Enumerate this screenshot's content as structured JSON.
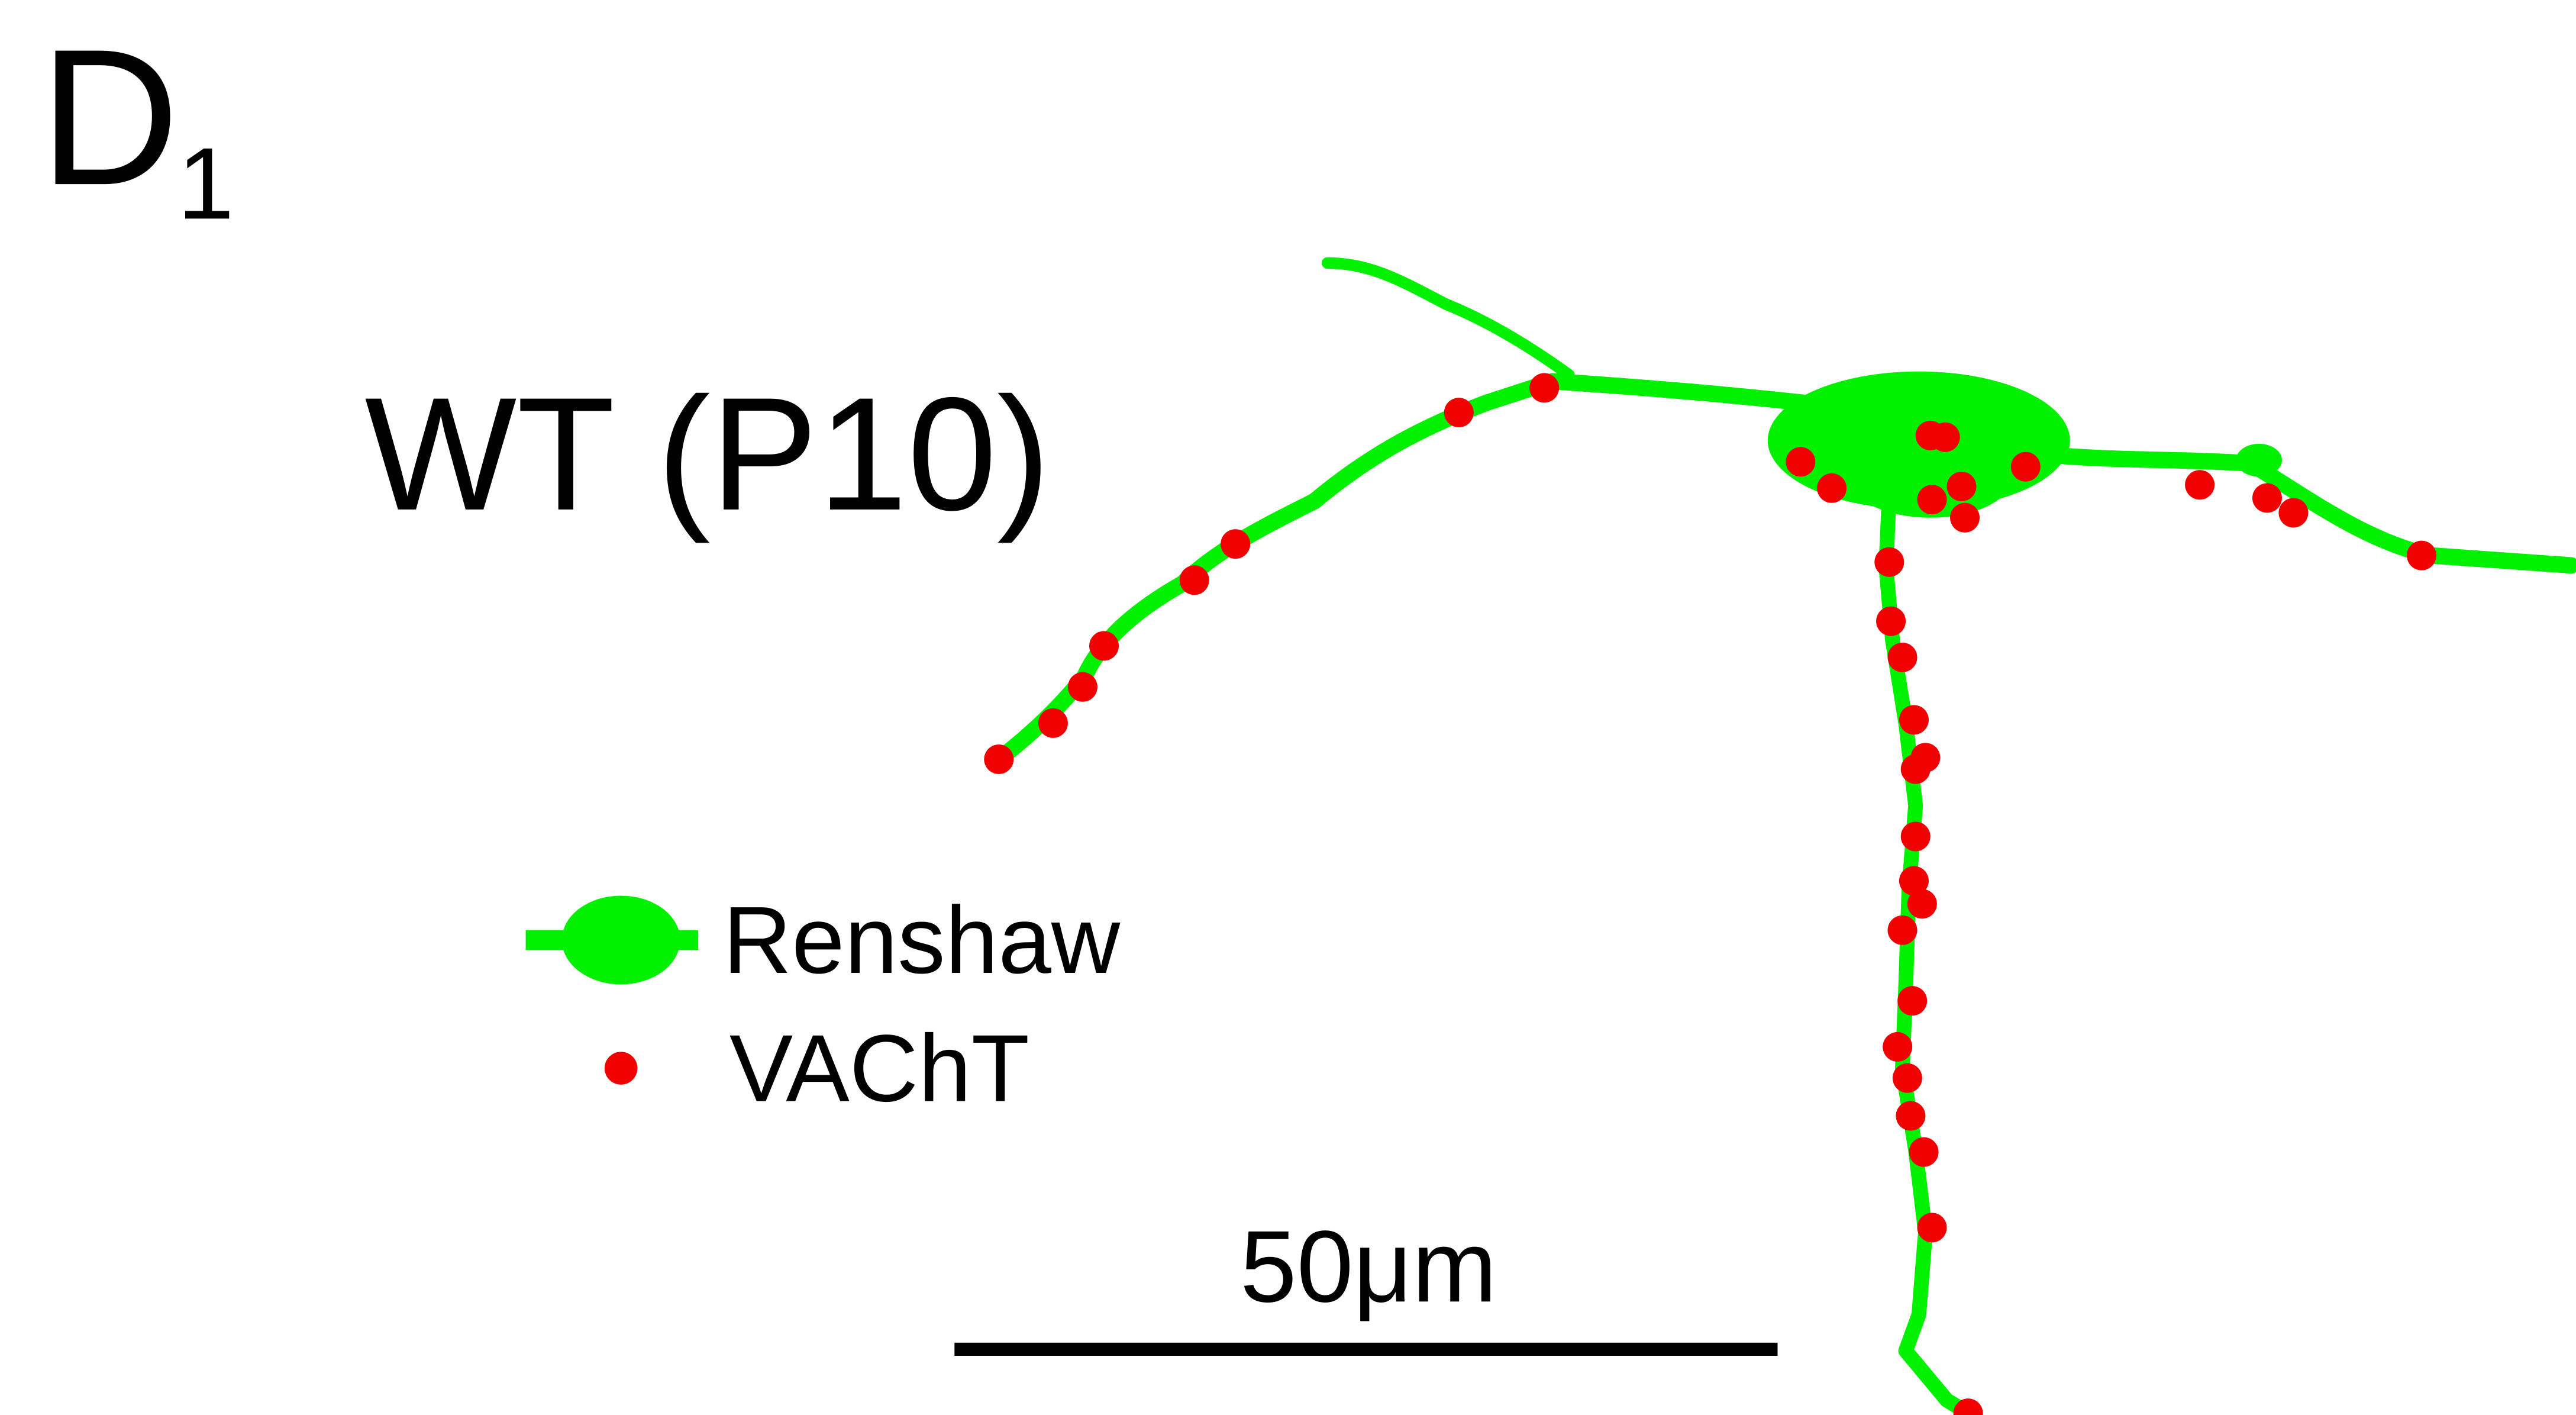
{
  "panel": {
    "letter": "D",
    "subscript": "1"
  },
  "title": "WT (P10)",
  "legend": {
    "items": [
      {
        "label": "Renshaw"
      },
      {
        "label": "VAChT"
      }
    ]
  },
  "scale_bar": {
    "label": "50μm"
  }
}
